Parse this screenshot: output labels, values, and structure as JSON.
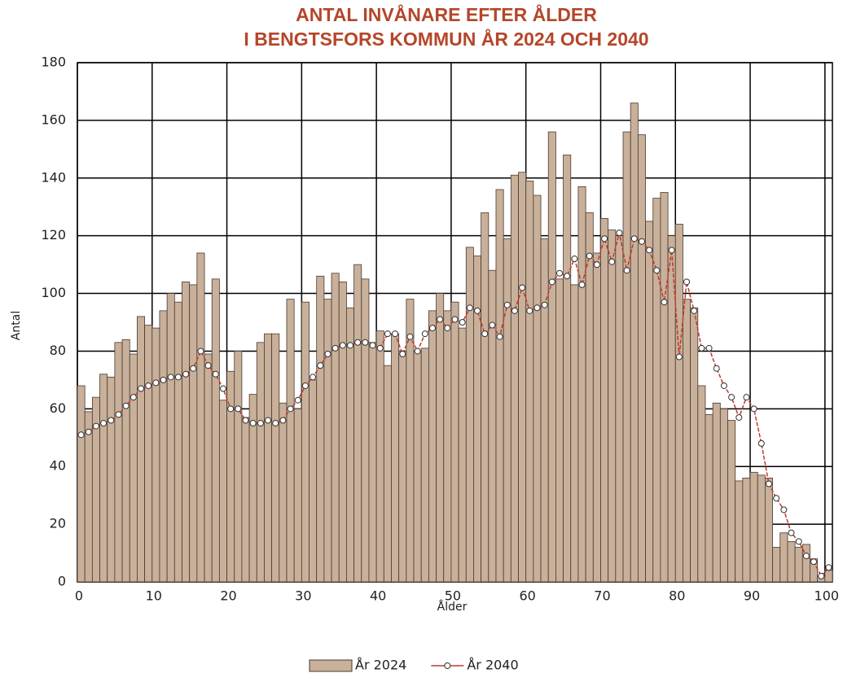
{
  "chart_data": {
    "type": "bar",
    "title": [
      "ANTAL INVÅNARE EFTER ÅLDER",
      "I BENGTSFORS KOMMUN ÅR 2024 OCH 2040"
    ],
    "x_label": "Ålder",
    "y_label": "Antal",
    "x": [
      0,
      1,
      2,
      3,
      4,
      5,
      6,
      7,
      8,
      9,
      10,
      11,
      12,
      13,
      14,
      15,
      16,
      17,
      18,
      19,
      20,
      21,
      22,
      23,
      24,
      25,
      26,
      27,
      28,
      29,
      30,
      31,
      32,
      33,
      34,
      35,
      36,
      37,
      38,
      39,
      40,
      41,
      42,
      43,
      44,
      45,
      46,
      47,
      48,
      49,
      50,
      51,
      52,
      53,
      54,
      55,
      56,
      57,
      58,
      59,
      60,
      61,
      62,
      63,
      64,
      65,
      66,
      67,
      68,
      69,
      70,
      71,
      72,
      73,
      74,
      75,
      76,
      77,
      78,
      79,
      80,
      81,
      82,
      83,
      84,
      85,
      86,
      87,
      88,
      89,
      90,
      91,
      92,
      93,
      94,
      95,
      96,
      97,
      98,
      99,
      100
    ],
    "series": [
      {
        "name": "År 2024",
        "type": "bar",
        "color": "#c8b09a",
        "values": [
          68,
          59,
          64,
          72,
          71,
          83,
          84,
          79,
          92,
          89,
          88,
          94,
          100,
          97,
          104,
          103,
          114,
          79,
          105,
          63,
          73,
          80,
          57,
          65,
          83,
          86,
          86,
          62,
          98,
          60,
          97,
          70,
          106,
          98,
          107,
          104,
          95,
          110,
          105,
          83,
          87,
          75,
          86,
          80,
          98,
          80,
          81,
          94,
          100,
          94,
          97,
          88,
          116,
          113,
          128,
          108,
          136,
          119,
          141,
          142,
          139,
          134,
          119,
          156,
          105,
          148,
          103,
          137,
          128,
          114,
          126,
          122,
          120,
          156,
          166,
          155,
          125,
          133,
          135,
          120,
          124,
          98,
          95,
          68,
          58,
          62,
          60,
          56,
          35,
          36,
          38,
          37,
          36,
          12,
          17,
          14,
          12,
          13,
          8,
          2,
          4
        ]
      },
      {
        "name": "År 2040",
        "type": "line",
        "color": "#c0392b",
        "values": [
          51,
          52,
          54,
          55,
          56,
          58,
          61,
          64,
          67,
          68,
          69,
          70,
          71,
          71,
          72,
          74,
          80,
          75,
          72,
          67,
          60,
          60,
          56,
          55,
          55,
          56,
          55,
          56,
          60,
          63,
          68,
          71,
          75,
          79,
          81,
          82,
          82,
          83,
          83,
          82,
          81,
          86,
          86,
          79,
          85,
          80,
          86,
          88,
          91,
          88,
          91,
          90,
          95,
          94,
          86,
          89,
          85,
          96,
          94,
          102,
          94,
          95,
          96,
          104,
          107,
          106,
          112,
          103,
          113,
          110,
          119,
          111,
          121,
          108,
          119,
          118,
          115,
          108,
          97,
          115,
          78,
          104,
          94,
          81,
          81,
          74,
          68,
          64,
          57,
          64,
          60,
          48,
          34,
          29,
          25,
          17,
          14,
          9,
          7,
          2,
          5
        ]
      }
    ],
    "xlim": [
      0,
      101
    ],
    "xticks": [
      0,
      10,
      20,
      30,
      40,
      50,
      60,
      70,
      80,
      90,
      100
    ],
    "ylim": [
      0,
      180
    ],
    "yticks": [
      0,
      20,
      40,
      60,
      80,
      100,
      120,
      140,
      160,
      180
    ],
    "grid": true,
    "legend": "bottom"
  }
}
